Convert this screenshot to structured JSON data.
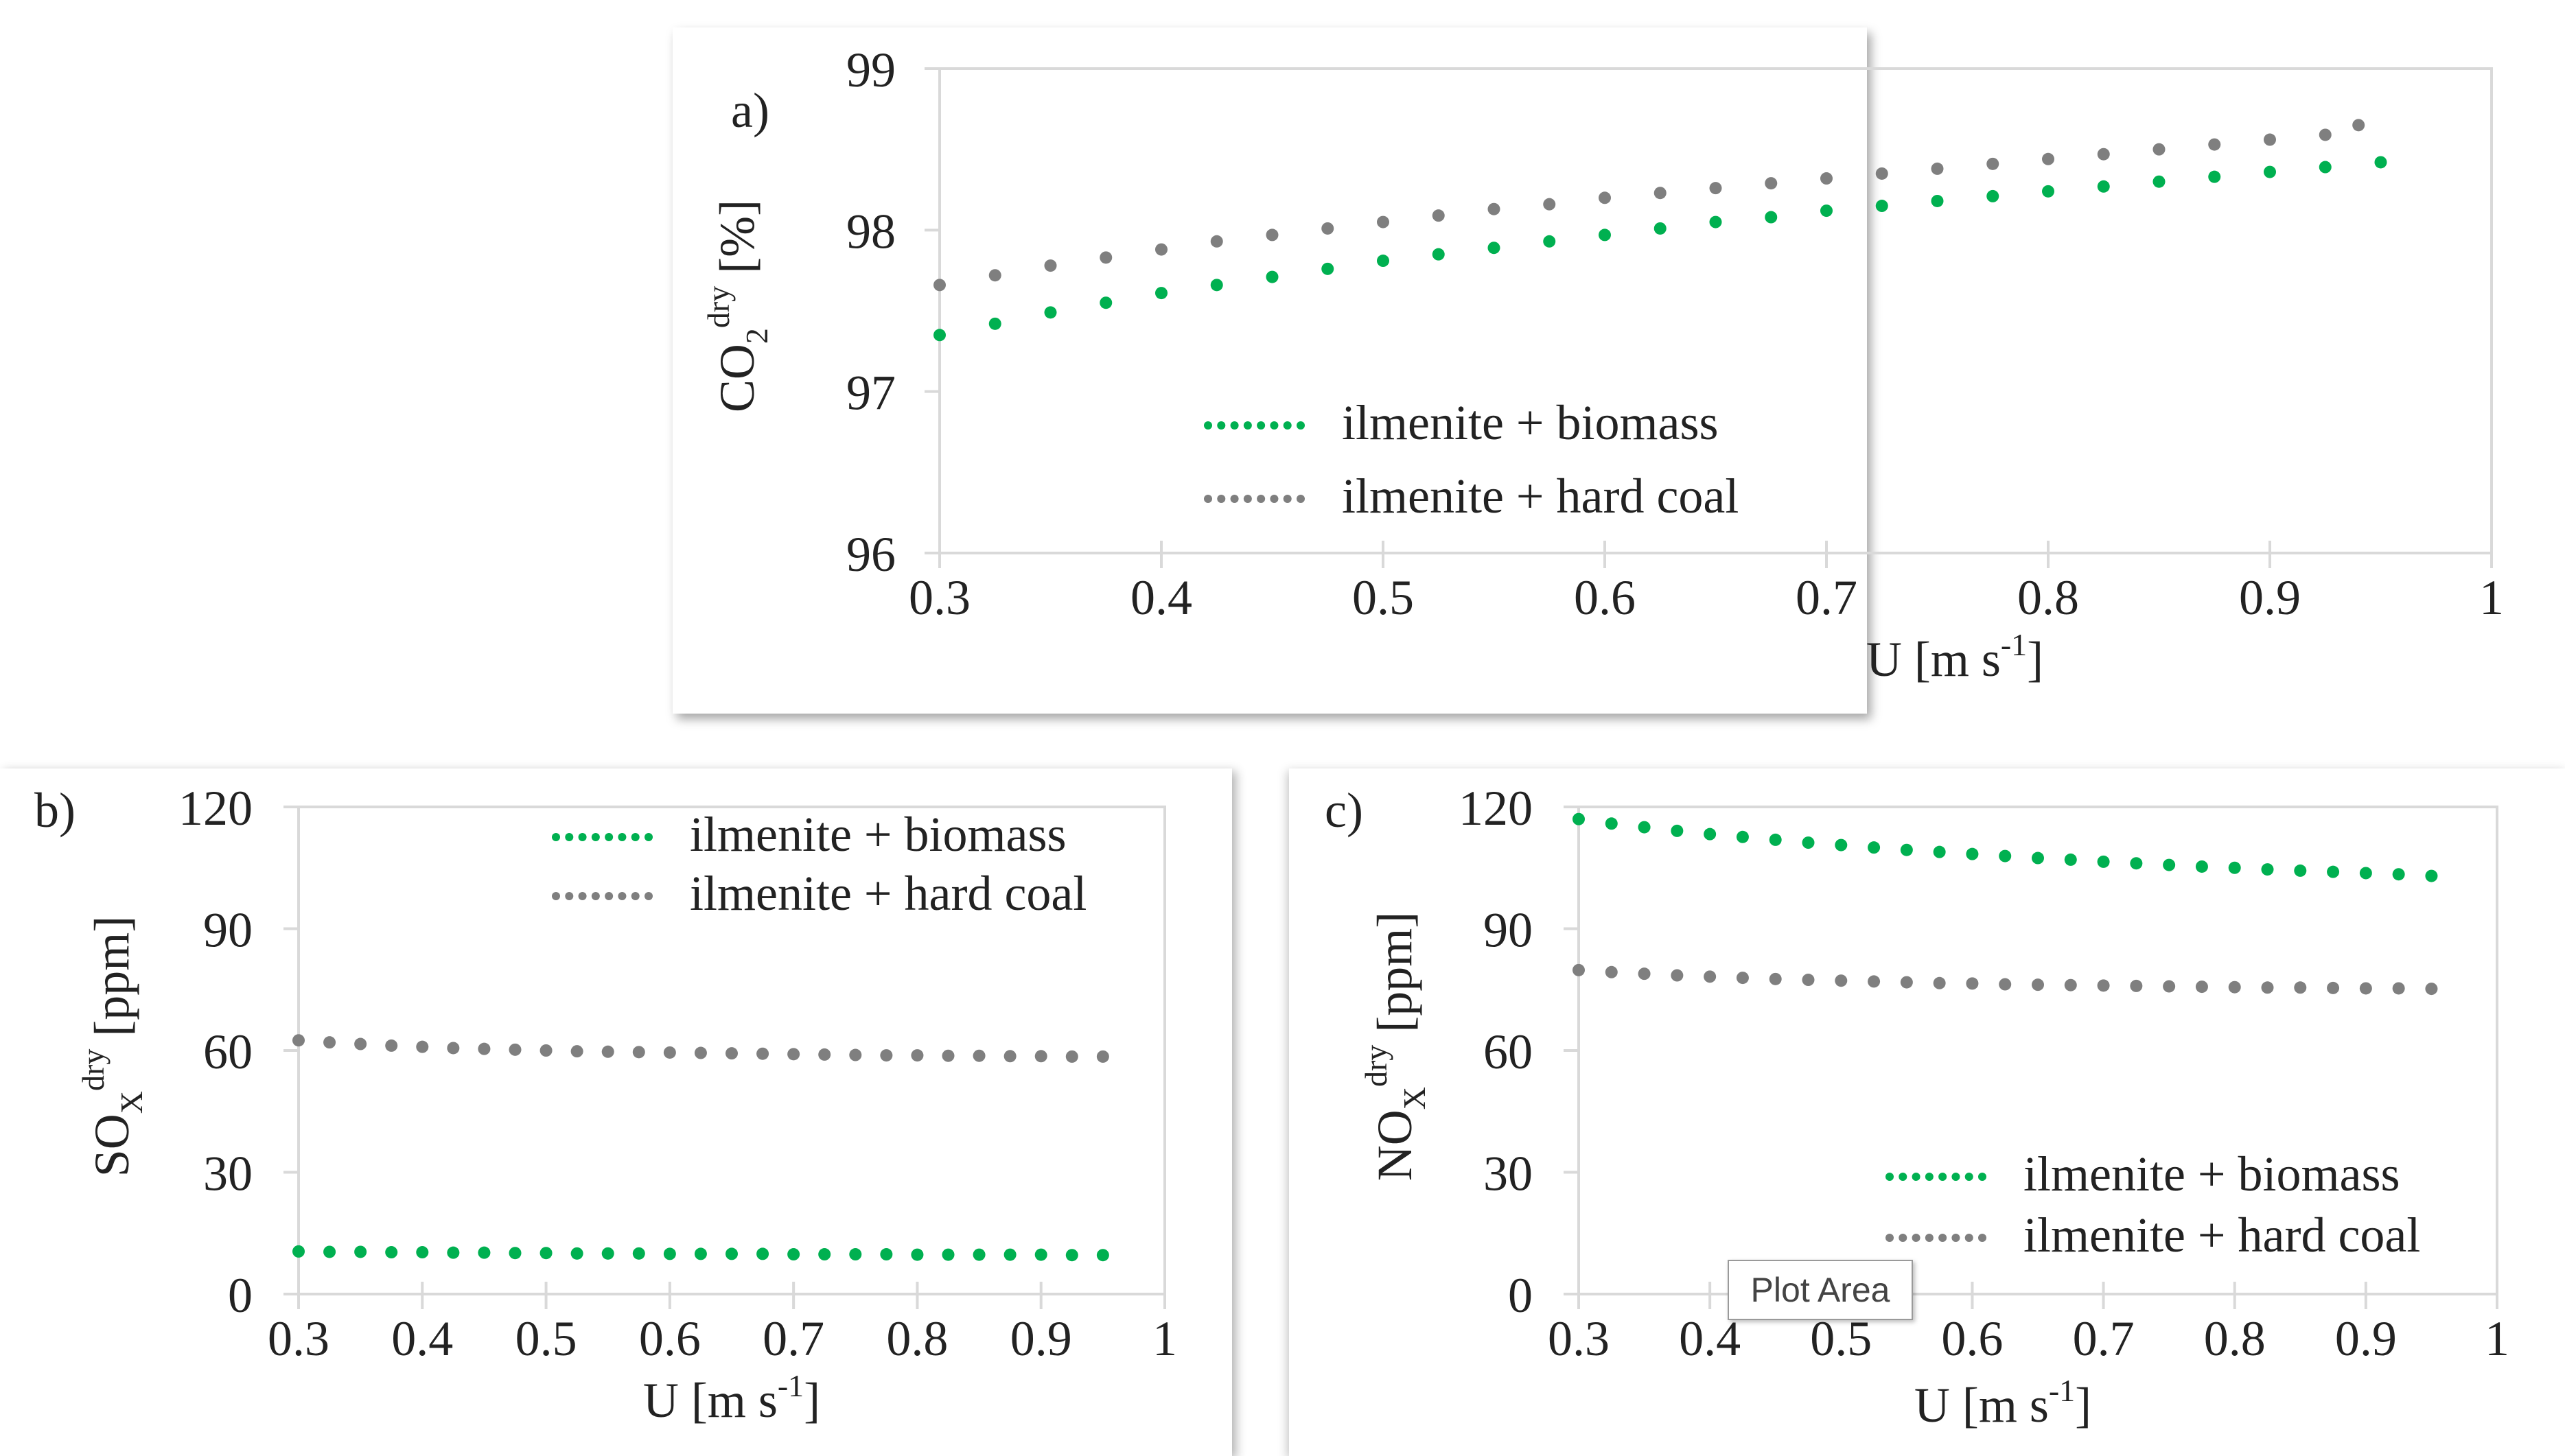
{
  "colors": {
    "biomass": "#00b050",
    "hard_coal": "#7f7f7f",
    "axis": "#d9d9d9",
    "text": "#222222"
  },
  "tooltip": {
    "text": "Plot Area"
  },
  "chart_data": [
    {
      "id": "a",
      "type": "scatter",
      "panel_label": "a)",
      "ylabel": {
        "main": "CO",
        "sub": "2",
        "sup": "dry",
        "unit": " [%]"
      },
      "xlabel": {
        "main": "U [m s",
        "sup": "-1",
        "end": "]"
      },
      "xlim": [
        0.3,
        1.0
      ],
      "ylim": [
        96,
        99
      ],
      "xticks": [
        "0.3",
        "0.4",
        "0.5",
        "0.6",
        "0.7",
        "0.8",
        "0.9",
        "1"
      ],
      "yticks": [
        "96",
        "97",
        "98",
        "99"
      ],
      "legend": {
        "position": "bottom-right",
        "entries": [
          "ilmenite + biomass",
          "ilmenite + hard coal"
        ]
      },
      "series": [
        {
          "name": "ilmenite + biomass",
          "color_key": "biomass",
          "x": [
            0.3,
            0.325,
            0.35,
            0.375,
            0.4,
            0.425,
            0.45,
            0.475,
            0.5,
            0.525,
            0.55,
            0.575,
            0.6,
            0.625,
            0.65,
            0.675,
            0.7,
            0.725,
            0.75,
            0.775,
            0.8,
            0.825,
            0.85,
            0.875,
            0.9,
            0.925,
            0.95
          ],
          "y": [
            97.35,
            97.42,
            97.49,
            97.55,
            97.61,
            97.66,
            97.71,
            97.76,
            97.81,
            97.85,
            97.89,
            97.93,
            97.97,
            98.01,
            98.05,
            98.08,
            98.12,
            98.15,
            98.18,
            98.21,
            98.24,
            98.27,
            98.3,
            98.33,
            98.36,
            98.39,
            98.42
          ]
        },
        {
          "name": "ilmenite + hard coal",
          "color_key": "hard_coal",
          "x": [
            0.3,
            0.325,
            0.35,
            0.375,
            0.4,
            0.425,
            0.45,
            0.475,
            0.5,
            0.525,
            0.55,
            0.575,
            0.6,
            0.625,
            0.65,
            0.675,
            0.7,
            0.725,
            0.75,
            0.775,
            0.8,
            0.825,
            0.85,
            0.875,
            0.9,
            0.925,
            0.94
          ],
          "y": [
            97.66,
            97.72,
            97.78,
            97.83,
            97.88,
            97.93,
            97.97,
            98.01,
            98.05,
            98.09,
            98.13,
            98.16,
            98.2,
            98.23,
            98.26,
            98.29,
            98.32,
            98.35,
            98.38,
            98.41,
            98.44,
            98.47,
            98.5,
            98.53,
            98.56,
            98.59,
            98.65
          ]
        }
      ]
    },
    {
      "id": "b",
      "type": "scatter",
      "panel_label": "b)",
      "ylabel": {
        "main": "SO",
        "sub": "X",
        "sup": "dry",
        "unit": " [ppm]"
      },
      "xlabel": {
        "main": "U [m s",
        "sup": "-1",
        "end": "]"
      },
      "xlim": [
        0.3,
        1.0
      ],
      "ylim": [
        0,
        120
      ],
      "xticks": [
        "0.3",
        "0.4",
        "0.5",
        "0.6",
        "0.7",
        "0.8",
        "0.9",
        "1"
      ],
      "yticks": [
        "0",
        "30",
        "60",
        "90",
        "120"
      ],
      "legend": {
        "position": "top-right",
        "entries": [
          "ilmenite + biomass",
          "ilmenite + hard coal"
        ]
      },
      "series": [
        {
          "name": "ilmenite + biomass",
          "color_key": "biomass",
          "x": [
            0.3,
            0.325,
            0.35,
            0.375,
            0.4,
            0.425,
            0.45,
            0.475,
            0.5,
            0.525,
            0.55,
            0.575,
            0.6,
            0.625,
            0.65,
            0.675,
            0.7,
            0.725,
            0.75,
            0.775,
            0.8,
            0.825,
            0.85,
            0.875,
            0.9,
            0.925,
            0.95
          ],
          "y": [
            10.5,
            10.4,
            10.4,
            10.3,
            10.3,
            10.2,
            10.2,
            10.1,
            10.1,
            10.0,
            10.0,
            10.0,
            9.9,
            9.9,
            9.9,
            9.9,
            9.8,
            9.8,
            9.8,
            9.8,
            9.7,
            9.7,
            9.7,
            9.7,
            9.7,
            9.6,
            9.6
          ]
        },
        {
          "name": "ilmenite + hard coal",
          "color_key": "hard_coal",
          "x": [
            0.3,
            0.325,
            0.35,
            0.375,
            0.4,
            0.425,
            0.45,
            0.475,
            0.5,
            0.525,
            0.55,
            0.575,
            0.6,
            0.625,
            0.65,
            0.675,
            0.7,
            0.725,
            0.75,
            0.775,
            0.8,
            0.825,
            0.85,
            0.875,
            0.9,
            0.925,
            0.95
          ],
          "y": [
            62.5,
            62.0,
            61.6,
            61.2,
            60.9,
            60.6,
            60.4,
            60.2,
            60.0,
            59.8,
            59.7,
            59.6,
            59.5,
            59.4,
            59.3,
            59.2,
            59.1,
            59.0,
            58.9,
            58.8,
            58.8,
            58.7,
            58.7,
            58.6,
            58.6,
            58.5,
            58.5
          ]
        }
      ]
    },
    {
      "id": "c",
      "type": "scatter",
      "panel_label": "c)",
      "ylabel": {
        "main": "NO",
        "sub": "X",
        "sup": "dry",
        "unit": " [ppm]"
      },
      "xlabel": {
        "main": "U [m s",
        "sup": "-1",
        "end": "]"
      },
      "xlim": [
        0.3,
        1.0
      ],
      "ylim": [
        0,
        120
      ],
      "xticks": [
        "0.3",
        "0.4",
        "0.5",
        "0.6",
        "0.7",
        "0.8",
        "0.9",
        "1"
      ],
      "yticks": [
        "0",
        "30",
        "60",
        "90",
        "120"
      ],
      "legend": {
        "position": "bottom-right",
        "entries": [
          "ilmenite + biomass",
          "ilmenite + hard coal"
        ]
      },
      "series": [
        {
          "name": "ilmenite + biomass",
          "color_key": "biomass",
          "x": [
            0.3,
            0.325,
            0.35,
            0.375,
            0.4,
            0.425,
            0.45,
            0.475,
            0.5,
            0.525,
            0.55,
            0.575,
            0.6,
            0.625,
            0.65,
            0.675,
            0.7,
            0.725,
            0.75,
            0.775,
            0.8,
            0.825,
            0.85,
            0.875,
            0.9,
            0.925,
            0.95
          ],
          "y": [
            117.0,
            115.9,
            115.0,
            114.1,
            113.3,
            112.6,
            111.9,
            111.2,
            110.6,
            110.0,
            109.4,
            108.9,
            108.4,
            107.9,
            107.4,
            107.0,
            106.5,
            106.1,
            105.7,
            105.3,
            105.0,
            104.6,
            104.3,
            104.0,
            103.7,
            103.4,
            103.0
          ]
        },
        {
          "name": "ilmenite + hard coal",
          "color_key": "hard_coal",
          "x": [
            0.3,
            0.325,
            0.35,
            0.375,
            0.4,
            0.425,
            0.45,
            0.475,
            0.5,
            0.525,
            0.55,
            0.575,
            0.6,
            0.625,
            0.65,
            0.675,
            0.7,
            0.725,
            0.75,
            0.775,
            0.8,
            0.825,
            0.85,
            0.875,
            0.9,
            0.925,
            0.95
          ],
          "y": [
            79.8,
            79.3,
            78.9,
            78.5,
            78.2,
            77.9,
            77.6,
            77.4,
            77.2,
            77.0,
            76.8,
            76.6,
            76.5,
            76.3,
            76.2,
            76.1,
            76.0,
            75.9,
            75.8,
            75.7,
            75.6,
            75.5,
            75.5,
            75.4,
            75.3,
            75.3,
            75.2
          ]
        }
      ]
    }
  ]
}
